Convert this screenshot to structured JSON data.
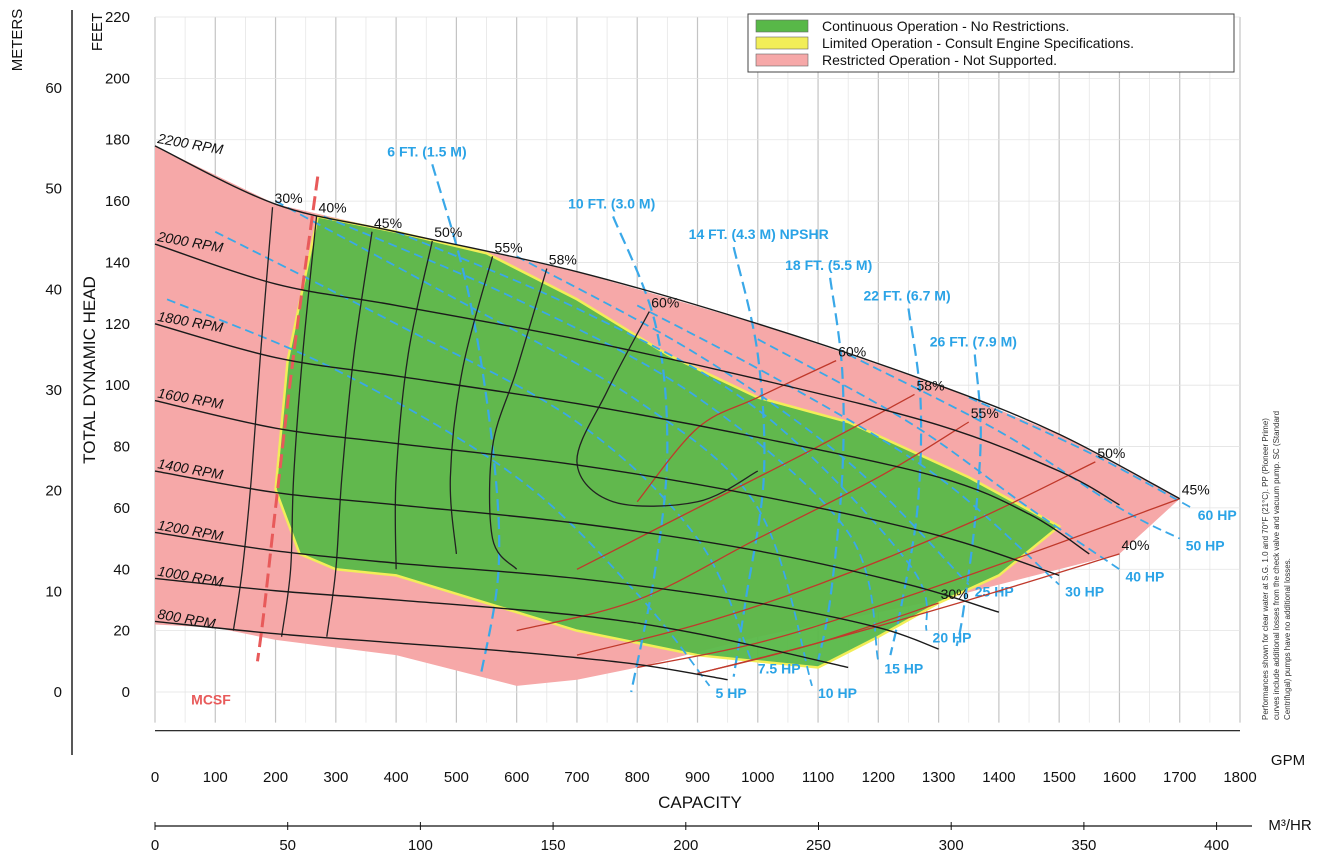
{
  "chart_data": {
    "type": "line",
    "title": "",
    "x_axis": {
      "label": "CAPACITY",
      "unit_label": "GPM",
      "range": [
        0,
        1800
      ],
      "ticks": [
        0,
        100,
        200,
        300,
        400,
        500,
        600,
        700,
        800,
        900,
        1000,
        1100,
        1200,
        1300,
        1400,
        1500,
        1600,
        1700,
        1800
      ],
      "secondary_unit_label": "M³/HR",
      "secondary_ticks": [
        0,
        50,
        100,
        150,
        200,
        250,
        300,
        350,
        400
      ]
    },
    "y_axis": {
      "label": "TOTAL DYNAMIC HEAD",
      "unit_label": "FEET",
      "range": [
        -10,
        220
      ],
      "ticks": [
        0,
        20,
        40,
        60,
        80,
        100,
        120,
        140,
        160,
        180,
        200,
        220
      ],
      "secondary_unit_label": "METERS",
      "secondary_ticks": [
        0,
        10,
        20,
        30,
        40,
        50,
        60
      ]
    },
    "legend": [
      {
        "label": "Continuous Operation - No Restrictions.",
        "color": "#58b848"
      },
      {
        "label": "Limited Operation - Consult Engine Specifications.",
        "color": "#f2ee58"
      },
      {
        "label": "Restricted Operation - Not Supported.",
        "color": "#f6a8a8"
      }
    ],
    "regions": {
      "restricted": [
        [
          0,
          178
        ],
        [
          200,
          159
        ],
        [
          400,
          150
        ],
        [
          700,
          137
        ],
        [
          1000,
          120
        ],
        [
          1300,
          100
        ],
        [
          1500,
          84
        ],
        [
          1700,
          63
        ],
        [
          1600,
          45
        ],
        [
          1300,
          30
        ],
        [
          1000,
          18
        ],
        [
          800,
          8
        ],
        [
          700,
          4
        ],
        [
          600,
          2
        ],
        [
          400,
          12
        ],
        [
          200,
          17
        ],
        [
          100,
          21
        ],
        [
          0,
          22
        ]
      ],
      "continuous": [
        [
          270,
          155
        ],
        [
          400,
          150
        ],
        [
          550,
          143
        ],
        [
          700,
          128
        ],
        [
          850,
          110
        ],
        [
          1000,
          96
        ],
        [
          1150,
          88
        ],
        [
          1350,
          70
        ],
        [
          1500,
          54
        ],
        [
          1400,
          38
        ],
        [
          1300,
          29
        ],
        [
          1200,
          18
        ],
        [
          1100,
          8
        ],
        [
          900,
          12
        ],
        [
          700,
          20
        ],
        [
          500,
          32
        ],
        [
          400,
          38
        ],
        [
          300,
          40
        ],
        [
          240,
          45
        ],
        [
          200,
          66
        ],
        [
          220,
          108
        ]
      ]
    },
    "speed_curves": [
      {
        "name": "2200 RPM",
        "points": [
          [
            0,
            178
          ],
          [
            200,
            159
          ],
          [
            400,
            150
          ],
          [
            700,
            137
          ],
          [
            1000,
            120
          ],
          [
            1300,
            100
          ],
          [
            1500,
            84
          ],
          [
            1700,
            63
          ]
        ]
      },
      {
        "name": "2000 RPM",
        "points": [
          [
            0,
            146
          ],
          [
            200,
            133
          ],
          [
            400,
            126
          ],
          [
            700,
            115
          ],
          [
            1000,
            102
          ],
          [
            1300,
            87
          ],
          [
            1500,
            72
          ],
          [
            1600,
            61
          ]
        ]
      },
      {
        "name": "1800 RPM",
        "points": [
          [
            0,
            120
          ],
          [
            200,
            109
          ],
          [
            400,
            103
          ],
          [
            700,
            94
          ],
          [
            1000,
            83
          ],
          [
            1300,
            70
          ],
          [
            1450,
            58
          ],
          [
            1550,
            45
          ]
        ]
      },
      {
        "name": "1600 RPM",
        "points": [
          [
            0,
            95
          ],
          [
            200,
            86
          ],
          [
            400,
            81
          ],
          [
            700,
            74
          ],
          [
            1000,
            64
          ],
          [
            1300,
            51
          ],
          [
            1500,
            38
          ]
        ]
      },
      {
        "name": "1400 RPM",
        "points": [
          [
            0,
            72
          ],
          [
            200,
            65
          ],
          [
            400,
            61
          ],
          [
            700,
            55
          ],
          [
            1000,
            46
          ],
          [
            1250,
            35
          ],
          [
            1400,
            26
          ]
        ]
      },
      {
        "name": "1200 RPM",
        "points": [
          [
            0,
            52
          ],
          [
            200,
            46
          ],
          [
            400,
            42
          ],
          [
            700,
            37
          ],
          [
            1000,
            29
          ],
          [
            1200,
            21
          ],
          [
            1300,
            14
          ]
        ]
      },
      {
        "name": "1000 RPM",
        "points": [
          [
            0,
            37
          ],
          [
            200,
            33
          ],
          [
            400,
            30
          ],
          [
            700,
            25
          ],
          [
            900,
            19
          ],
          [
            1150,
            8
          ]
        ]
      },
      {
        "name": "800 RPM",
        "points": [
          [
            0,
            23
          ],
          [
            200,
            19
          ],
          [
            400,
            16
          ],
          [
            600,
            13
          ],
          [
            800,
            9
          ],
          [
            950,
            4
          ]
        ]
      }
    ],
    "efficiency_lines": [
      {
        "name": "30%",
        "points": [
          [
            195,
            158
          ],
          [
            175,
            110
          ],
          [
            160,
            70
          ],
          [
            145,
            40
          ],
          [
            130,
            20
          ]
        ]
      },
      {
        "name": "40%",
        "points": [
          [
            268,
            155
          ],
          [
            245,
            110
          ],
          [
            230,
            70
          ],
          [
            225,
            40
          ],
          [
            210,
            18
          ]
        ]
      },
      {
        "name": "45%",
        "points": [
          [
            360,
            150
          ],
          [
            330,
            110
          ],
          [
            310,
            70
          ],
          [
            300,
            40
          ],
          [
            285,
            18
          ]
        ]
      },
      {
        "name": "50%",
        "points": [
          [
            460,
            147
          ],
          [
            420,
            110
          ],
          [
            400,
            70
          ],
          [
            400,
            40
          ]
        ]
      },
      {
        "name": "55%",
        "points": [
          [
            560,
            142
          ],
          [
            510,
            105
          ],
          [
            490,
            70
          ],
          [
            500,
            45
          ]
        ]
      },
      {
        "name": "58%",
        "points": [
          [
            650,
            138
          ],
          [
            600,
            105
          ],
          [
            560,
            80
          ],
          [
            560,
            50
          ],
          [
            600,
            40
          ]
        ]
      },
      {
        "name": "60%",
        "points": [
          [
            820,
            124
          ],
          [
            750,
            98
          ],
          [
            700,
            75
          ],
          [
            760,
            62
          ],
          [
            900,
            62
          ],
          [
            1000,
            72
          ]
        ]
      },
      {
        "name": "60% ",
        "points": [
          [
            1130,
            108
          ],
          [
            1000,
            96
          ],
          [
            900,
            86
          ],
          [
            800,
            62
          ]
        ]
      },
      {
        "name": "58% ",
        "points": [
          [
            1260,
            97
          ],
          [
            1100,
            80
          ],
          [
            900,
            60
          ],
          [
            700,
            40
          ]
        ]
      },
      {
        "name": "55% ",
        "points": [
          [
            1350,
            88
          ],
          [
            1200,
            70
          ],
          [
            1000,
            50
          ],
          [
            800,
            30
          ],
          [
            600,
            20
          ]
        ]
      },
      {
        "name": "50% ",
        "points": [
          [
            1560,
            75
          ],
          [
            1350,
            55
          ],
          [
            1100,
            35
          ],
          [
            900,
            22
          ],
          [
            700,
            12
          ]
        ]
      },
      {
        "name": "45% ",
        "points": [
          [
            1700,
            63
          ],
          [
            1450,
            45
          ],
          [
            1200,
            28
          ],
          [
            1000,
            16
          ],
          [
            800,
            8
          ]
        ]
      },
      {
        "name": "40% ",
        "points": [
          [
            1600,
            45
          ],
          [
            1350,
            30
          ],
          [
            1100,
            16
          ],
          [
            900,
            6
          ]
        ]
      },
      {
        "name": "30% ",
        "points": [
          [
            1300,
            29
          ],
          [
            1100,
            16
          ],
          [
            900,
            6
          ]
        ]
      }
    ],
    "npshr_lines": [
      {
        "name": "6 FT. (1.5 M)",
        "points": [
          [
            460,
            172
          ],
          [
            520,
            130
          ],
          [
            560,
            80
          ],
          [
            570,
            40
          ],
          [
            540,
            5
          ]
        ]
      },
      {
        "name": "10 FT. (3.0 M)",
        "points": [
          [
            760,
            155
          ],
          [
            830,
            120
          ],
          [
            850,
            80
          ],
          [
            830,
            40
          ],
          [
            790,
            0
          ]
        ]
      },
      {
        "name": "14 FT. (4.3 M) NPSHR",
        "points": [
          [
            960,
            145
          ],
          [
            1000,
            110
          ],
          [
            1010,
            70
          ],
          [
            980,
            30
          ],
          [
            960,
            5
          ]
        ]
      },
      {
        "name": "18 FT. (5.5 M)",
        "points": [
          [
            1120,
            135
          ],
          [
            1140,
            105
          ],
          [
            1140,
            70
          ],
          [
            1120,
            30
          ],
          [
            1100,
            10
          ]
        ]
      },
      {
        "name": "22 FT. (6.7 M)",
        "points": [
          [
            1250,
            125
          ],
          [
            1270,
            95
          ],
          [
            1265,
            60
          ],
          [
            1240,
            30
          ],
          [
            1220,
            12
          ]
        ]
      },
      {
        "name": "26 FT. (7.9 M)",
        "points": [
          [
            1360,
            110
          ],
          [
            1370,
            85
          ],
          [
            1360,
            55
          ],
          [
            1340,
            25
          ],
          [
            1330,
            15
          ]
        ]
      }
    ],
    "hp_lines": [
      {
        "name": "5 HP",
        "points": [
          [
            20,
            128
          ],
          [
            300,
            105
          ],
          [
            600,
            70
          ],
          [
            800,
            32
          ],
          [
            920,
            2
          ]
        ]
      },
      {
        "name": "7.5 HP",
        "points": [
          [
            100,
            150
          ],
          [
            400,
            120
          ],
          [
            700,
            88
          ],
          [
            900,
            50
          ],
          [
            990,
            10
          ]
        ]
      },
      {
        "name": "10 HP",
        "points": [
          [
            200,
            160
          ],
          [
            500,
            128
          ],
          [
            800,
            95
          ],
          [
            1000,
            60
          ],
          [
            1090,
            2
          ]
        ]
      },
      {
        "name": "15 HP",
        "points": [
          [
            280,
            155
          ],
          [
            600,
            128
          ],
          [
            900,
            96
          ],
          [
            1150,
            52
          ],
          [
            1200,
            10
          ]
        ]
      },
      {
        "name": "20 HP",
        "points": [
          [
            400,
            150
          ],
          [
            700,
            125
          ],
          [
            1000,
            92
          ],
          [
            1250,
            42
          ],
          [
            1280,
            20
          ]
        ]
      },
      {
        "name": "25 HP",
        "points": [
          [
            600,
            142
          ],
          [
            900,
            110
          ],
          [
            1150,
            75
          ],
          [
            1350,
            35
          ]
        ]
      },
      {
        "name": "30 HP",
        "points": [
          [
            800,
            126
          ],
          [
            1050,
            100
          ],
          [
            1300,
            70
          ],
          [
            1500,
            35
          ]
        ]
      },
      {
        "name": "40 HP",
        "points": [
          [
            1000,
            115
          ],
          [
            1250,
            88
          ],
          [
            1450,
            60
          ],
          [
            1600,
            40
          ]
        ]
      },
      {
        "name": "50 HP",
        "points": [
          [
            1150,
            110
          ],
          [
            1400,
            85
          ],
          [
            1600,
            60
          ],
          [
            1700,
            50
          ]
        ]
      },
      {
        "name": "60 HP",
        "points": [
          [
            1350,
            96
          ],
          [
            1550,
            78
          ],
          [
            1720,
            60
          ]
        ]
      }
    ],
    "mcsf": {
      "name": "MCSF",
      "points": [
        [
          270,
          168
        ],
        [
          230,
          110
        ],
        [
          200,
          60
        ],
        [
          180,
          25
        ],
        [
          170,
          10
        ]
      ]
    },
    "rpm_labels": [
      "2200 RPM",
      "2000 RPM",
      "1800 RPM",
      "1600 RPM",
      "1400 RPM",
      "1200 RPM",
      "1000 RPM",
      "800 RPM"
    ],
    "note": "Performances shown for clear water at S.G. 1.0 and 70°F (21°C). PP (Pioneer Prime) curves include additional losses from the check valve and vacuum pump. SC (Standard Centrifugal) pumps have no additional losses."
  }
}
